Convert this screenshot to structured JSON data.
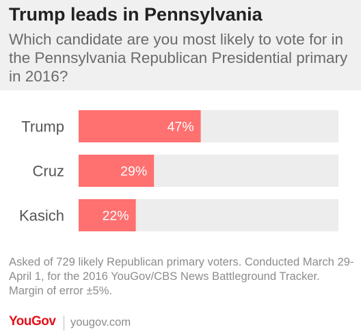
{
  "header": {
    "title": "Trump leads in Pennsylvania",
    "subtitle": "Which candidate are you most likely to vote for in the Pennsylvania Republican Presidential primary in 2016?"
  },
  "chart_data": {
    "type": "bar",
    "orientation": "horizontal",
    "categories": [
      "Trump",
      "Cruz",
      "Kasich"
    ],
    "values": [
      47,
      29,
      22
    ],
    "value_labels": [
      "47%",
      "29%",
      "22%"
    ],
    "xlim": [
      0,
      100
    ],
    "grid": false,
    "legend": "none"
  },
  "colors": {
    "bar": "#ff7070",
    "track": "#ededed",
    "header_bg": "#f0f0f0",
    "brand": "#e3111a"
  },
  "footnote": "Asked of 729 likely Republican primary voters. Conducted March 29-April 1, for the 2016 YouGov/CBS News Battleground Tracker. Margin of error ±5%.",
  "footer": {
    "logo_text": "YouGov",
    "site": "yougov.com"
  }
}
